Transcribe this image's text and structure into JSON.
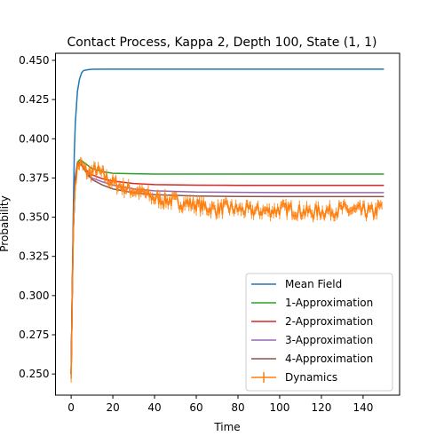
{
  "chart_data": {
    "type": "line",
    "title": "Contact Process, Kappa 2, Depth 100, State (1, 1)",
    "xlabel": "Time",
    "ylabel": "Probability",
    "xlim": [
      -7.5,
      157.5
    ],
    "ylim": [
      0.2365,
      0.4545
    ],
    "xticks": [
      0,
      20,
      40,
      60,
      80,
      100,
      120,
      140
    ],
    "xtick_labels": [
      "0",
      "20",
      "40",
      "60",
      "80",
      "100",
      "120",
      "140"
    ],
    "yticks": [
      0.25,
      0.275,
      0.3,
      0.325,
      0.35,
      0.375,
      0.4,
      0.425,
      0.45
    ],
    "ytick_labels": [
      "0.250",
      "0.275",
      "0.300",
      "0.325",
      "0.350",
      "0.375",
      "0.400",
      "0.425",
      "0.450"
    ],
    "grid": false,
    "legend_position": "lower-right",
    "series": [
      {
        "name": "Mean Field",
        "color": "#1f77b4",
        "x": [
          0,
          0.5,
          1,
          1.5,
          2,
          3,
          4,
          5,
          6,
          8,
          10,
          15,
          150
        ],
        "y": [
          0.25,
          0.3,
          0.35,
          0.39,
          0.41,
          0.43,
          0.438,
          0.442,
          0.4435,
          0.444,
          0.4443,
          0.4444,
          0.4444
        ]
      },
      {
        "name": "1-Approximation",
        "color": "#2ca02c",
        "x": [
          0,
          0.5,
          1,
          2,
          3,
          4,
          5,
          6,
          8,
          10,
          15,
          20,
          30,
          40,
          60,
          150
        ],
        "y": [
          0.25,
          0.3,
          0.34,
          0.375,
          0.385,
          0.3865,
          0.386,
          0.385,
          0.383,
          0.381,
          0.379,
          0.378,
          0.3777,
          0.3775,
          0.3775,
          0.3775
        ]
      },
      {
        "name": "2-Approximation",
        "color": "#d62728",
        "x": [
          0,
          0.5,
          1,
          2,
          3,
          4,
          5,
          6,
          8,
          10,
          15,
          20,
          30,
          40,
          60,
          80,
          100,
          150
        ],
        "y": [
          0.25,
          0.3,
          0.34,
          0.375,
          0.384,
          0.385,
          0.384,
          0.382,
          0.379,
          0.377,
          0.3745,
          0.373,
          0.3715,
          0.3708,
          0.3704,
          0.3703,
          0.3703,
          0.3703
        ]
      },
      {
        "name": "3-Approximation",
        "color": "#9467bd",
        "x": [
          0,
          0.5,
          1,
          2,
          3,
          4,
          5,
          6,
          8,
          10,
          15,
          20,
          30,
          40,
          60,
          80,
          100,
          150
        ],
        "y": [
          0.25,
          0.3,
          0.34,
          0.375,
          0.383,
          0.384,
          0.383,
          0.381,
          0.378,
          0.375,
          0.3725,
          0.3705,
          0.368,
          0.3668,
          0.366,
          0.3658,
          0.3657,
          0.3657
        ]
      },
      {
        "name": "4-Approximation",
        "color": "#8c564b",
        "x": [
          0,
          0.5,
          1,
          2,
          3,
          4,
          5,
          6,
          8,
          10,
          15,
          20,
          30,
          40,
          60,
          80,
          100,
          150
        ],
        "y": [
          0.25,
          0.3,
          0.34,
          0.375,
          0.383,
          0.384,
          0.383,
          0.381,
          0.377,
          0.374,
          0.3705,
          0.368,
          0.3655,
          0.3643,
          0.3635,
          0.3632,
          0.3631,
          0.3631
        ]
      },
      {
        "name": "Dynamics",
        "color": "#ff7f0e",
        "error_bars": true,
        "x": [
          0,
          1,
          2,
          3,
          4,
          5,
          6,
          8,
          10,
          12,
          14,
          16,
          18,
          20,
          25,
          30,
          35,
          40,
          45,
          50,
          55,
          60,
          65,
          70,
          75,
          80,
          85,
          90,
          95,
          100,
          105,
          110,
          115,
          120,
          125,
          130,
          135,
          140,
          145,
          149
        ],
        "y": [
          0.247,
          0.34,
          0.372,
          0.381,
          0.384,
          0.383,
          0.381,
          0.378,
          0.379,
          0.38,
          0.378,
          0.376,
          0.374,
          0.372,
          0.369,
          0.367,
          0.365,
          0.362,
          0.361,
          0.36,
          0.359,
          0.358,
          0.356,
          0.355,
          0.356,
          0.355,
          0.354,
          0.354,
          0.354,
          0.355,
          0.355,
          0.354,
          0.353,
          0.354,
          0.354,
          0.355,
          0.354,
          0.354,
          0.353,
          0.357
        ]
      }
    ]
  }
}
